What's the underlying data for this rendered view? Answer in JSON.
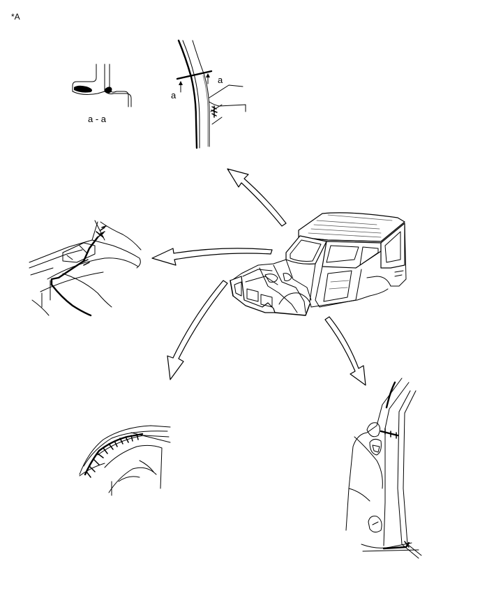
{
  "figure": {
    "reference_label": "*A",
    "section_label": "a - a",
    "section_marker_left": "a",
    "section_marker_right": "a"
  },
  "colors": {
    "line": "#000000",
    "background": "#ffffff"
  },
  "detail_views": [
    {
      "name": "section-a-a-profile"
    },
    {
      "name": "a-pillar-upper-detail"
    },
    {
      "name": "cowl-front-detail"
    },
    {
      "name": "front-fender-arch-detail"
    },
    {
      "name": "b-pillar-lower-detail"
    }
  ]
}
